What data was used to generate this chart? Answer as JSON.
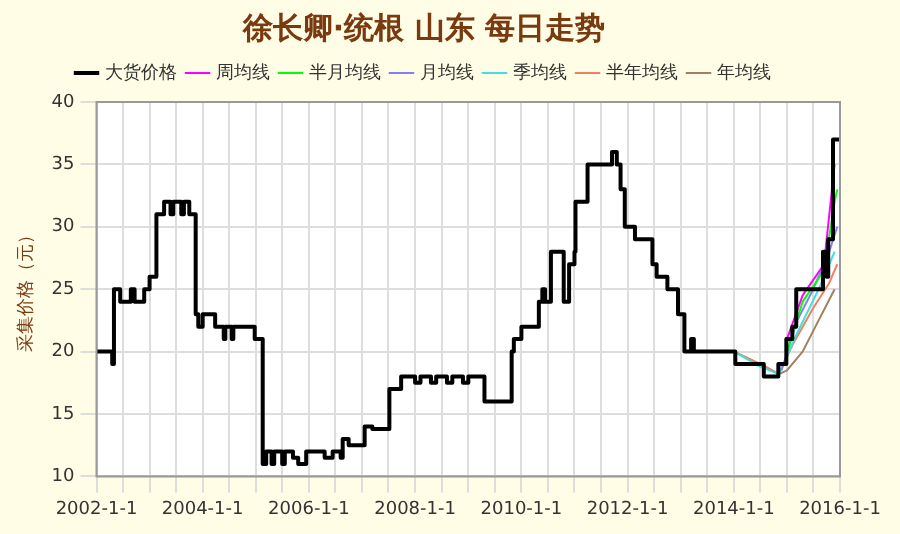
{
  "chart_data": {
    "type": "step",
    "title": "徐长卿·统根 山东 每日走势",
    "ylabel": "采集价格（元）",
    "xlim": [
      "2002-01-01",
      "2016-01-01"
    ],
    "xticks": [
      {
        "value": "2002-01-01",
        "label": "2002-1-1"
      },
      {
        "value": "2002-07-01",
        "label": null
      },
      {
        "value": "2003-01-01",
        "label": null
      },
      {
        "value": "2003-07-01",
        "label": null
      },
      {
        "value": "2004-01-01",
        "label": "2004-1-1"
      },
      {
        "value": "2004-07-01",
        "label": null
      },
      {
        "value": "2005-01-01",
        "label": null
      },
      {
        "value": "2005-07-01",
        "label": null
      },
      {
        "value": "2006-01-01",
        "label": "2006-1-1"
      },
      {
        "value": "2006-07-01",
        "label": null
      },
      {
        "value": "2007-01-01",
        "label": null
      },
      {
        "value": "2007-07-01",
        "label": null
      },
      {
        "value": "2008-01-01",
        "label": "2008-1-1"
      },
      {
        "value": "2008-07-01",
        "label": null
      },
      {
        "value": "2009-01-01",
        "label": null
      },
      {
        "value": "2009-07-01",
        "label": null
      },
      {
        "value": "2010-01-01",
        "label": "2010-1-1"
      },
      {
        "value": "2010-07-01",
        "label": null
      },
      {
        "value": "2011-01-01",
        "label": null
      },
      {
        "value": "2011-07-01",
        "label": null
      },
      {
        "value": "2012-01-01",
        "label": "2012-1-1"
      },
      {
        "value": "2012-07-01",
        "label": null
      },
      {
        "value": "2013-01-01",
        "label": null
      },
      {
        "value": "2013-07-01",
        "label": null
      },
      {
        "value": "2014-01-01",
        "label": "2014-1-1"
      },
      {
        "value": "2014-07-01",
        "label": null
      },
      {
        "value": "2015-01-01",
        "label": null
      },
      {
        "value": "2015-07-01",
        "label": null
      },
      {
        "value": "2016-01-01",
        "label": "2016-1-1"
      }
    ],
    "ylim": [
      10,
      40
    ],
    "yticks": [
      10,
      15,
      20,
      25,
      30,
      35,
      40
    ],
    "grid": true,
    "legend": "top",
    "series": [
      {
        "name": "大货价格",
        "color": "#000000",
        "x": [
          "2002-01-01",
          "2002-04-19",
          "2002-05-01",
          "2002-06-13",
          "2002-08-25",
          "2002-09-20",
          "2002-11-25",
          "2003-01-01",
          "2003-02-17",
          "2003-04-11",
          "2003-05-25",
          "2003-06-13",
          "2003-08-07",
          "2003-08-25",
          "2003-10-01",
          "2003-11-14",
          "2003-12-02",
          "2004-01-01",
          "2004-03-27",
          "2004-05-25",
          "2004-06-05",
          "2004-07-19",
          "2004-07-30",
          "2004-12-24",
          "2005-02-17",
          "2005-03-13",
          "2005-04-19",
          "2005-05-07",
          "2005-07-01",
          "2005-07-19",
          "2005-09-13",
          "2005-10-19",
          "2005-12-13",
          "2006-04-19",
          "2006-06-13",
          "2006-08-07",
          "2006-08-21",
          "2006-10-01",
          "2007-01-19",
          "2007-03-13",
          "2007-07-08",
          "2007-09-27",
          "2008-01-01",
          "2008-02-07",
          "2008-04-19",
          "2008-05-25",
          "2008-08-07",
          "2008-09-13",
          "2008-11-25",
          "2009-01-01",
          "2009-04-22",
          "2009-10-26",
          "2009-11-10",
          "2010-01-01",
          "2010-05-01",
          "2010-05-25",
          "2010-06-13",
          "2010-07-23",
          "2010-10-19",
          "2010-11-25",
          "2011-01-01",
          "2011-01-08",
          "2011-04-01",
          "2011-09-16",
          "2011-10-19",
          "2011-11-14",
          "2011-12-13",
          "2012-02-21",
          "2012-06-20",
          "2012-07-19",
          "2012-10-01",
          "2012-12-13",
          "2013-01-26",
          "2013-03-13",
          "2013-04-01",
          "2014-01-11",
          "2014-07-26",
          "2014-11-03",
          "2014-12-28",
          "2015-02-07",
          "2015-03-06",
          "2015-09-06",
          "2015-10-01",
          "2015-10-12",
          "2015-11-14",
          "2015-12-28"
        ],
        "values": [
          20,
          19,
          25,
          24,
          25,
          24,
          25,
          26,
          31,
          32,
          31,
          32,
          31,
          32,
          31,
          23,
          22,
          23,
          22,
          21,
          22,
          21,
          22,
          21,
          11,
          12,
          11,
          12,
          11,
          12,
          11.5,
          11,
          12,
          11.5,
          12,
          11.5,
          13,
          12.5,
          14,
          13.8,
          17,
          18,
          17.5,
          18,
          17.5,
          18,
          17.5,
          18,
          17.5,
          18,
          16,
          20,
          21,
          22,
          24,
          25,
          24,
          28,
          24,
          27,
          28,
          32,
          35,
          36,
          35,
          33,
          30,
          29,
          27,
          26,
          25,
          23,
          20,
          21,
          20,
          19,
          18,
          19,
          21,
          22,
          25,
          28,
          26,
          29,
          37,
          37
        ]
      },
      {
        "name": "周均线",
        "type": "line",
        "color": "#ff00ff",
        "x": [
          "2015-01-01",
          "2015-04-19",
          "2015-09-13",
          "2015-11-25"
        ],
        "values": [
          21,
          24.5,
          27,
          35
        ]
      },
      {
        "name": "半月均线",
        "type": "line",
        "color": "#00ff00",
        "x": [
          "2015-01-01",
          "2015-04-19",
          "2015-09-13",
          "2015-11-25",
          "2015-12-13"
        ],
        "values": [
          20,
          24,
          26.5,
          32,
          33
        ]
      },
      {
        "name": "月均线",
        "type": "line",
        "color": "#8080ff",
        "x": [
          "2014-11-25",
          "2015-03-13",
          "2015-07-01",
          "2015-10-19",
          "2015-12-13"
        ],
        "values": [
          18.5,
          22.5,
          25,
          28,
          30
        ]
      },
      {
        "name": "季均线",
        "type": "line",
        "color": "#40e0e0",
        "x": [
          "2014-01-01",
          "2014-07-01",
          "2014-11-07",
          "2015-03-13",
          "2015-08-07",
          "2015-11-25"
        ],
        "values": [
          20,
          18.8,
          18.2,
          21.5,
          25,
          28
        ]
      },
      {
        "name": "半年均线",
        "type": "line",
        "color": "#f08060",
        "x": [
          "2014-01-01",
          "2014-08-07",
          "2014-11-07",
          "2015-02-07",
          "2015-07-01",
          "2015-10-19",
          "2015-12-13"
        ],
        "values": [
          20,
          18.8,
          18.2,
          20.5,
          23.5,
          25.5,
          27
        ]
      },
      {
        "name": "年均线",
        "type": "line",
        "color": "#a08060",
        "x": [
          "2014-01-01",
          "2014-07-01",
          "2014-11-07",
          "2015-01-01",
          "2015-04-19",
          "2015-08-07",
          "2015-11-25"
        ],
        "values": [
          20,
          19,
          18.2,
          18.5,
          20,
          22.5,
          25
        ]
      }
    ]
  }
}
